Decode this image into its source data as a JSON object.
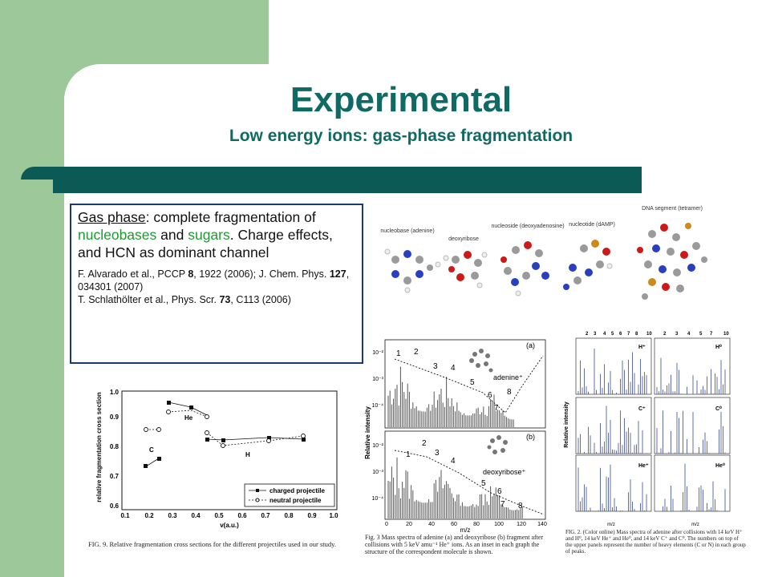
{
  "slide": {
    "title": "Experimental",
    "subtitle": "Low energy ions: gas-phase fragmentation",
    "box": {
      "t1": "Gas phase",
      "t2": ": complete fragmentation of ",
      "t3": "nucleobases",
      "t4": " and ",
      "t5": "sugars",
      "t6": ". Charge effects, and HCN as dominant channel",
      "ref1a": "F. Alvarado et al., PCCP ",
      "ref1b": "8",
      "ref1c": ", 1922 (2006); J. Chem. Phys. ",
      "ref1d": "127",
      "ref1e": ", 034301 (2007)",
      "ref2a": "T. Schlathölter et al., Phys. Scr. ",
      "ref2b": "73",
      "ref2c": ", C113 (2006)"
    }
  },
  "molecules": {
    "labels": [
      "nucleobase (adenine)",
      "deoxyribose",
      "nucleoside (deoxyadenosine)",
      "nucleotide (dAMP)",
      "DNA segment (tetramer)"
    ]
  },
  "fig9": {
    "caption": "FIG. 9. Relative fragmentation cross sections for the different projectiles used in our study.",
    "ylabel": "relative fragmentation cross section",
    "xlabel": "v(a.u.)",
    "legend": [
      "charged projectile",
      "neutral projectile"
    ],
    "labels": {
      "c": "C",
      "he": "He",
      "h": "H"
    },
    "yticks": [
      "0.6",
      "0.7",
      "0.8",
      "0.9",
      "1.0"
    ],
    "xticks": [
      "0.1",
      "0.2",
      "0.3",
      "0.4",
      "0.5",
      "0.6",
      "0.7",
      "0.8",
      "0.9",
      "1.0"
    ]
  },
  "fig3": {
    "caption": "Fig. 3  Mass spectra of adenine (a) and deoxyribose (b) fragment after collisions with 5 keV amu⁻¹ He⁺ ions. As an inset in each graph the structure of the correspondent molecule is shown.",
    "ylabel": "Relative intensity",
    "xlabel": "m/z",
    "panel_a": "(a)",
    "panel_b": "(b)",
    "mol_a": "adenine⁺",
    "mol_b": "deoxyribose⁺",
    "xticks": [
      "0",
      "20",
      "40",
      "60",
      "80",
      "100",
      "120",
      "140"
    ],
    "yticks": [
      "10⁻²",
      "10⁻³",
      "10⁻⁴"
    ],
    "nums_a": [
      "1",
      "2",
      "3",
      "4",
      "5",
      "6",
      "7",
      "8"
    ],
    "nums_b": [
      "1",
      "2",
      "3",
      "4",
      "5",
      "6",
      "7",
      "8"
    ]
  },
  "fig2": {
    "caption": "FIG. 2. (Color online) Mass spectra of adenine after collisions with 14 keV H⁺ and H⁰, 14 keV He⁺ and He⁰, and 14 keV C⁺ and C⁰. The numbers on top of the upper panels represent the number of heavy elements (C or N) in each group of peaks.",
    "ylabel": "Relative intensity",
    "xlabel": "m/z",
    "top_nums": [
      "2",
      "3",
      "4",
      "5",
      "6",
      "7",
      "8",
      "10"
    ],
    "panel_labels": [
      "H⁺",
      "H⁰",
      "C⁺",
      "C⁰",
      "He⁺",
      "He⁰"
    ]
  }
}
